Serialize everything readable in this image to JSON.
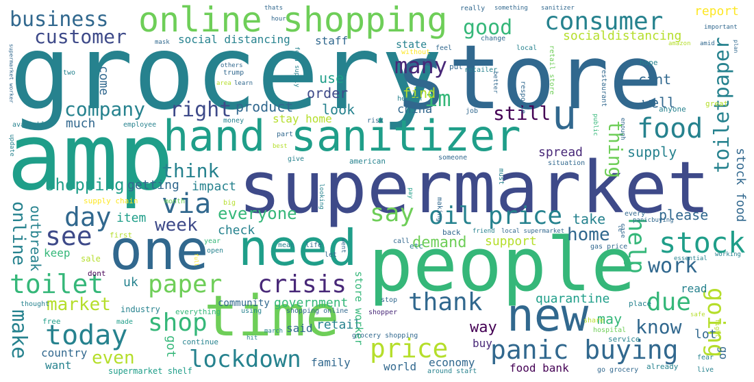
{
  "colors": {
    "background": "#ffffff",
    "palette": [
      "#440154",
      "#482878",
      "#3e4a89",
      "#31688e",
      "#26828e",
      "#1f9e89",
      "#35b779",
      "#6ece58",
      "#b5de2b",
      "#fde725"
    ]
  },
  "words": {
    "grocery": "grocery",
    "store": "store",
    "amp": "amp",
    "supermarket": "supermarket",
    "people": "people",
    "time": "time",
    "need": "need",
    "one": "one",
    "new": "new",
    "hand_sanitizer": "hand sanitizer",
    "online_shopping": "online shopping",
    "u": "u",
    "consumer": "consumer",
    "food": "food",
    "toiletpaper": "toiletpaper",
    "stock": "stock",
    "panic_buying": "panic buying",
    "crisis": "crisis",
    "paper": "paper",
    "toilet": "toilet",
    "price": "price",
    "today": "today",
    "shop": "shop",
    "lockdown": "lockdown",
    "oil_price": "oil price",
    "via": "via",
    "say": "say",
    "day": "day",
    "see": "see",
    "help": "help",
    "going": "going",
    "due": "due",
    "thank": "thank",
    "work": "work",
    "business": "business",
    "customer": "customer",
    "company": "company",
    "right": "right",
    "good": "good",
    "im": "im",
    "many": "many",
    "still": "still",
    "think": "think",
    "shopping": "shopping",
    "week": "week",
    "everyone": "everyone",
    "home": "home",
    "demand": "demand",
    "market": "market",
    "make": "make",
    "even": "even",
    "online": "online",
    "know": "know",
    "thing": "thing",
    "report": "report",
    "socialdistancing": "socialdistancing",
    "social_distancing": "social distancing",
    "staff": "staff",
    "state": "state",
    "use": "use",
    "order": "order",
    "product": "product",
    "look": "look",
    "find": "find",
    "china": "china",
    "stay_home": "stay home",
    "much": "much",
    "come": "come",
    "getting": "getting",
    "impact": "impact",
    "spread": "spread",
    "supply": "supply",
    "well": "well",
    "cant": "cant",
    "item": "item",
    "check": "check",
    "take": "take",
    "please": "please",
    "stock_food": "stock food",
    "support": "support",
    "keep": "keep",
    "outbreak": "outbreak",
    "uk": "uk",
    "quarantine": "quarantine",
    "government": "government",
    "community": "community",
    "read": "read",
    "way": "way",
    "may": "may",
    "lot": "lot",
    "retail": "retail",
    "said": "said",
    "got": "got",
    "buy": "buy",
    "economy": "economy",
    "family": "family",
    "want": "want",
    "country": "country",
    "world": "world",
    "food_bank": "food bank",
    "go": "go",
    "store_worker": "store worker",
    "supply_chain": "supply chain",
    "month": "month",
    "big": "big",
    "sale": "sale",
    "first": "first",
    "year": "year",
    "full": "full",
    "dont": "dont",
    "industry": "industry",
    "everything": "everything",
    "free": "free",
    "made": "made",
    "thought": "thought",
    "continue": "continue",
    "supermarket_shelf": "supermarket shelf",
    "using": "using",
    "shopping_online": "shopping online",
    "march": "march",
    "hit": "hit",
    "grocery_shopping": "grocery shopping",
    "around_start": "around start",
    "shopper": "shopper",
    "stop": "stop",
    "share": "share",
    "hospital": "hospital",
    "service": "service",
    "already": "already",
    "fear": "fear",
    "live": "live",
    "go_grocery": "go grocery",
    "safe": "safe",
    "place": "place",
    "fight": "fight",
    "essential": "essential",
    "working": "working",
    "gas_price": "gas price",
    "local_supermarket": "local supermarket",
    "friend": "friend",
    "back": "back",
    "call": "call",
    "etc": "etc",
    "let": "let",
    "mean": "mean",
    "life": "life",
    "went": "went",
    "open": "open",
    "making": "making",
    "pay": "pay",
    "looking": "looking",
    "american": "american",
    "someone": "someone",
    "situation": "situation",
    "give": "give",
    "must": "must",
    "best": "best",
    "part": "part",
    "money": "money",
    "risk": "risk",
    "job": "job",
    "public": "public",
    "enough": "enough",
    "great": "great",
    "anyone": "anyone",
    "employee": "employee",
    "available": "available",
    "update": "update",
    "health": "health",
    "response": "response",
    "retailer": "retailer",
    "better": "better",
    "retail_store": "retail store",
    "restaurant": "restaurant",
    "hope": "hope",
    "put": "put",
    "feel": "feel",
    "without": "without",
    "food_supply": "food supply",
    "others": "others",
    "trump": "trump",
    "area": "area",
    "learn": "learn",
    "two": "two",
    "supermarket_worker": "supermarket worker",
    "mask": "mask",
    "thats": "thats",
    "hour": "hour",
    "really": "really",
    "something": "something",
    "sanitizer": "sanitizer",
    "change": "change",
    "local": "local",
    "amazon": "amazon",
    "amid": "amid",
    "important": "important",
    "plan": "plan",
    "case": "case",
    "every": "every",
    "le": "le",
    "panicbuying": "panicbuying"
  }
}
